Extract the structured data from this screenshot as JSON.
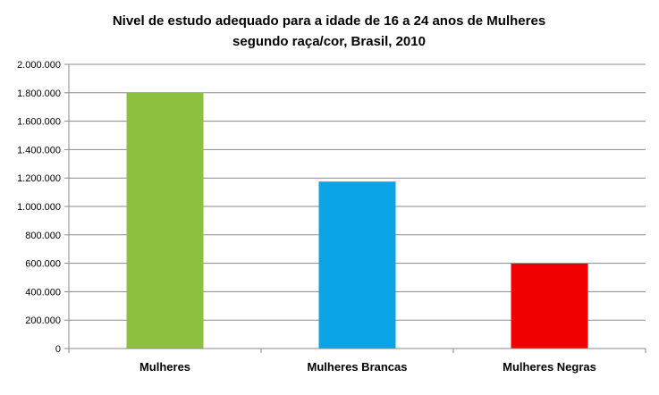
{
  "chart_data": {
    "type": "bar",
    "title_line1": "Nivel de estudo adequado para a idade de 16 a 24 anos de Mulheres",
    "title_line2": "segundo raça/cor, Brasil, 2010",
    "categories": [
      "Mulheres",
      "Mulheres Brancas",
      "Mulheres Negras"
    ],
    "values": [
      1800000,
      1175000,
      598000
    ],
    "colors": [
      "#8dc03f",
      "#0aa3e6",
      "#f00000"
    ],
    "ylim": [
      0,
      2000000
    ],
    "yticks": [
      0,
      200000,
      400000,
      600000,
      800000,
      1000000,
      1200000,
      1400000,
      1600000,
      1800000,
      2000000
    ],
    "ytick_labels": [
      "0",
      "200.000",
      "400.000",
      "600.000",
      "800.000",
      "1.000.000",
      "1.200.000",
      "1.400.000",
      "1.600.000",
      "1.800.000",
      "2.000.000"
    ],
    "grid": true,
    "xlabel": "",
    "ylabel": ""
  }
}
